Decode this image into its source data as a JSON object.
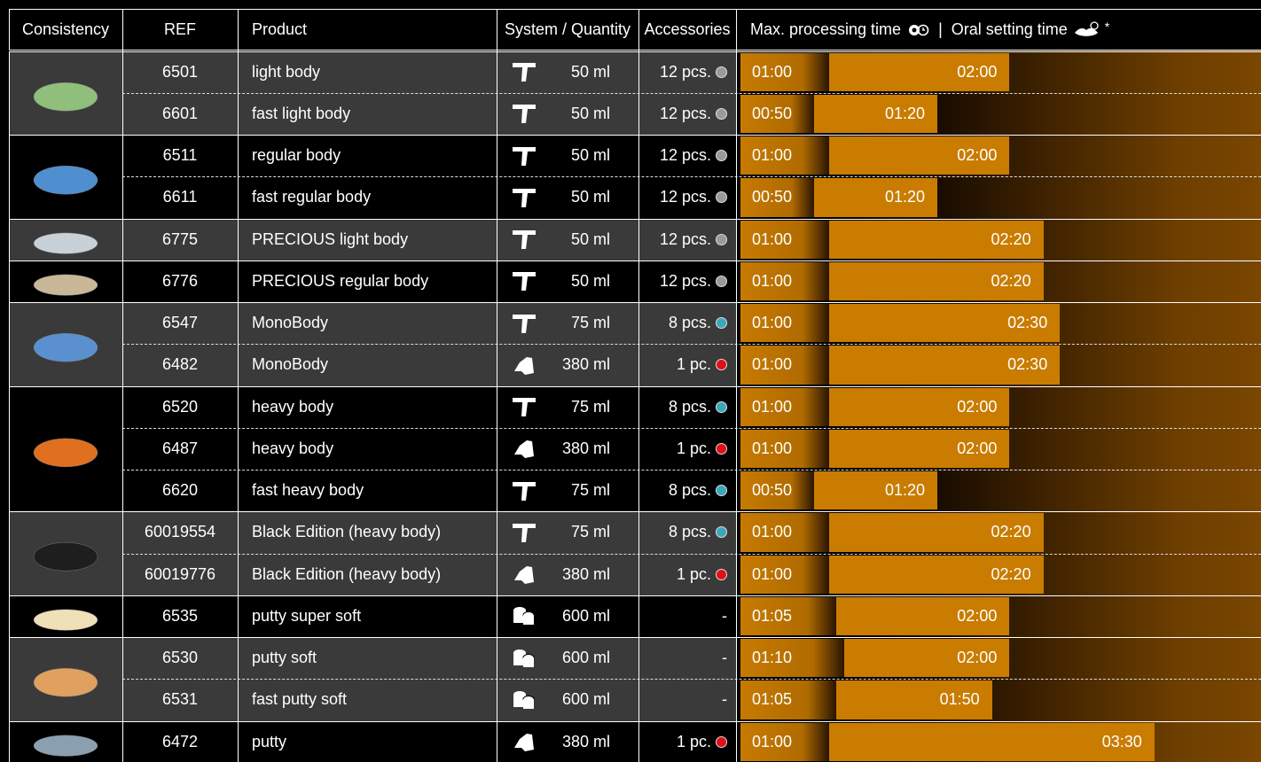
{
  "header": {
    "consistency": "Consistency",
    "ref": "REF",
    "product": "Product",
    "system": "System / Quantity",
    "accessories": "Accessories",
    "processing": "Max. processing time",
    "separator": "|",
    "setting": "Oral setting time",
    "asterisk": "*"
  },
  "groups": [
    {
      "color": "#8fbf7a",
      "rows": [
        {
          "ref": "6501",
          "product": "light body",
          "quantity": "50 ml",
          "accessories": "12 pcs.",
          "dot": "#9a9a9a",
          "processing": "01:00",
          "setting": "02:00"
        },
        {
          "ref": "6601",
          "product": "fast light body",
          "quantity": "50 ml",
          "accessories": "12 pcs.",
          "dot": "#9a9a9a",
          "processing": "00:50",
          "setting": "01:20"
        }
      ]
    },
    {
      "color": "#4f8fd0",
      "rows": [
        {
          "ref": "6511",
          "product": "regular body",
          "quantity": "50 ml",
          "accessories": "12 pcs.",
          "dot": "#9a9a9a",
          "processing": "01:00",
          "setting": "02:00"
        },
        {
          "ref": "6611",
          "product": "fast regular body",
          "quantity": "50 ml",
          "accessories": "12 pcs.",
          "dot": "#9a9a9a",
          "processing": "00:50",
          "setting": "01:20"
        }
      ]
    },
    {
      "color": "#c8d0d8",
      "rows": [
        {
          "ref": "6775",
          "product": "PRECIOUS light body",
          "quantity": "50 ml",
          "accessories": "12 pcs.",
          "dot": "#9a9a9a",
          "processing": "01:00",
          "setting": "02:20"
        }
      ]
    },
    {
      "color": "#c8b898",
      "rows": [
        {
          "ref": "6776",
          "product": "PRECIOUS regular body",
          "quantity": "50 ml",
          "accessories": "12 pcs.",
          "dot": "#9a9a9a",
          "processing": "01:00",
          "setting": "02:20"
        }
      ]
    },
    {
      "color": "#5a90d0",
      "rows": [
        {
          "ref": "6547",
          "product": "MonoBody",
          "quantity": "75 ml",
          "accessories": "8 pcs.",
          "dot": "#3aa8b8",
          "processing": "01:00",
          "setting": "02:30"
        },
        {
          "ref": "6482",
          "product": "MonoBody",
          "quantity": "380 ml",
          "accessories": "1 pc.",
          "dot": "#e0101a",
          "processing": "01:00",
          "setting": "02:30"
        }
      ]
    },
    {
      "color": "#e07020",
      "rows": [
        {
          "ref": "6520",
          "product": "heavy body",
          "quantity": "75 ml",
          "accessories": "8 pcs.",
          "dot": "#3aa8b8",
          "processing": "01:00",
          "setting": "02:00"
        },
        {
          "ref": "6487",
          "product": "heavy body",
          "quantity": "380 ml",
          "accessories": "1 pc.",
          "dot": "#e0101a",
          "processing": "01:00",
          "setting": "02:00"
        },
        {
          "ref": "6620",
          "product": "fast heavy body",
          "quantity": "75 ml",
          "accessories": "8 pcs.",
          "dot": "#3aa8b8",
          "processing": "00:50",
          "setting": "01:20"
        }
      ]
    },
    {
      "color": "#1e1e1e",
      "rows": [
        {
          "ref": "60019554",
          "product": "Black Edition (heavy body)",
          "quantity": "75 ml",
          "accessories": "8 pcs.",
          "dot": "#3aa8b8",
          "processing": "01:00",
          "setting": "02:20"
        },
        {
          "ref": "60019776",
          "product": "Black Edition (heavy body)",
          "quantity": "380 ml",
          "accessories": "1 pc.",
          "dot": "#e0101a",
          "processing": "01:00",
          "setting": "02:20"
        }
      ]
    },
    {
      "color": "#f0e0b8",
      "rows": [
        {
          "ref": "6535",
          "product": "putty super soft",
          "quantity": "600 ml",
          "accessories": "-",
          "processing": "01:05",
          "setting": "02:00"
        }
      ]
    },
    {
      "color": "#e0a060",
      "rows": [
        {
          "ref": "6530",
          "product": "putty soft",
          "quantity": "600 ml",
          "accessories": "-",
          "processing": "01:10",
          "setting": "02:00"
        },
        {
          "ref": "6531",
          "product": "fast putty soft",
          "quantity": "600 ml",
          "accessories": "-",
          "processing": "01:05",
          "setting": "01:50"
        }
      ]
    },
    {
      "color": "#8aa0b0",
      "rows": [
        {
          "ref": "6472",
          "product": "putty",
          "quantity": "380 ml",
          "accessories": "1 pc.",
          "dot": "#e0101a",
          "processing": "01:00",
          "setting": "03:30"
        }
      ]
    }
  ]
}
